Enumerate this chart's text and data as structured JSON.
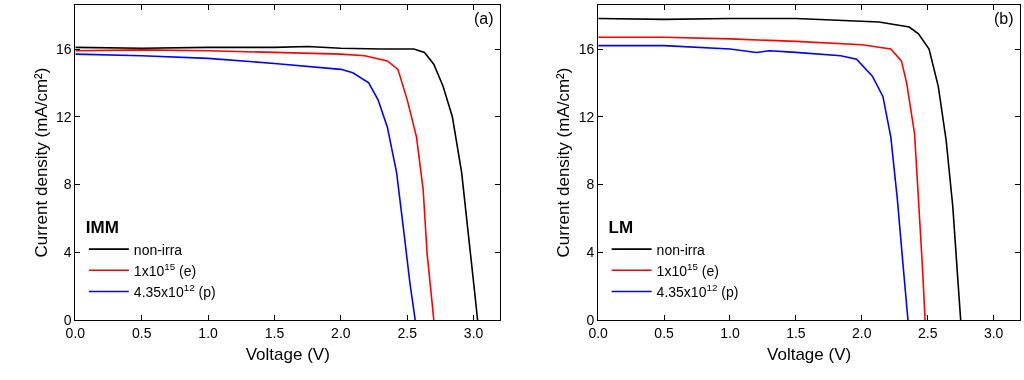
{
  "chart_data": [
    {
      "type": "line",
      "xlabel": "Voltage (V)",
      "ylabel": "Current density (mA/cm²)",
      "legend_title": "IMM",
      "annotations": [
        "(a)"
      ],
      "legend": "bottom left",
      "xlim": [
        0,
        3.2
      ],
      "ylim": [
        0,
        18.6
      ],
      "xticks": [
        {
          "value": 0,
          "label": "0.0"
        },
        {
          "value": 0.5,
          "label": "0.5"
        },
        {
          "value": 1,
          "label": "1.0"
        },
        {
          "value": 1.5,
          "label": "1.5"
        },
        {
          "value": 2,
          "label": "2.0"
        },
        {
          "value": 2.5,
          "label": "2.5"
        },
        {
          "value": 3,
          "label": "3.0"
        }
      ],
      "yticks": [
        0,
        4,
        8,
        12,
        16
      ],
      "series": [
        {
          "name": "non-irra",
          "color": "#000000",
          "x": [
            0,
            0.5,
            1.0,
            1.5,
            1.75,
            2.0,
            2.3,
            2.55,
            2.63,
            2.7,
            2.77,
            2.84,
            2.91,
            2.96,
            3.01,
            3.03
          ],
          "values": [
            16.1,
            16.05,
            16.1,
            16.1,
            16.15,
            16.05,
            16.0,
            16.0,
            15.8,
            15.1,
            13.8,
            12.0,
            8.7,
            5.1,
            1.5,
            0
          ]
        },
        {
          "name": "1x10$^{15}$ (e)",
          "color": "#ff0000",
          "x": [
            0,
            0.5,
            1.0,
            1.5,
            2.0,
            2.18,
            2.35,
            2.43,
            2.5,
            2.57,
            2.62,
            2.65,
            2.69,
            2.7
          ],
          "values": [
            15.9,
            15.95,
            15.9,
            15.8,
            15.7,
            15.6,
            15.3,
            14.8,
            13.0,
            10.8,
            7.7,
            3.9,
            0.8,
            0
          ]
        },
        {
          "name": "4.35x10$^{12}$ (p)",
          "color": "#0000ff",
          "x": [
            0,
            0.5,
            1.0,
            1.5,
            2.0,
            2.09,
            2.21,
            2.28,
            2.35,
            2.42,
            2.47,
            2.52,
            2.56
          ],
          "values": [
            15.7,
            15.6,
            15.45,
            15.15,
            14.8,
            14.6,
            14.0,
            13.0,
            11.4,
            8.7,
            5.5,
            2.2,
            0
          ]
        }
      ]
    },
    {
      "type": "line",
      "xlabel": "Voltage (V)",
      "ylabel": "Current density (mA/cm²)",
      "legend_title": "LM",
      "annotations": [
        "(b)"
      ],
      "legend": "bottom left",
      "xlim": [
        0,
        3.2
      ],
      "ylim": [
        0,
        18.6
      ],
      "xticks": [
        {
          "value": 0,
          "label": "0.0"
        },
        {
          "value": 0.5,
          "label": "0.5"
        },
        {
          "value": 1,
          "label": "1.0"
        },
        {
          "value": 1.5,
          "label": "1.5"
        },
        {
          "value": 2,
          "label": "2.0"
        },
        {
          "value": 2.5,
          "label": "2.5"
        },
        {
          "value": 3,
          "label": "3.0"
        }
      ],
      "yticks": [
        0,
        4,
        8,
        12,
        16
      ],
      "series": [
        {
          "name": "non-irra",
          "color": "#000000",
          "x": [
            0,
            0.5,
            1.0,
            1.5,
            2.13,
            2.36,
            2.43,
            2.51,
            2.58,
            2.64,
            2.69,
            2.73,
            2.75
          ],
          "values": [
            17.8,
            17.75,
            17.8,
            17.8,
            17.6,
            17.3,
            16.9,
            16.0,
            13.8,
            10.6,
            6.7,
            2.2,
            0
          ]
        },
        {
          "name": "1x10$^{15}$ (e)",
          "color": "#ff0000",
          "x": [
            0,
            0.5,
            1.0,
            1.5,
            2.0,
            2.22,
            2.3,
            2.34,
            2.4,
            2.43,
            2.46,
            2.48
          ],
          "values": [
            16.7,
            16.7,
            16.6,
            16.45,
            16.25,
            16.0,
            15.3,
            14.0,
            11.0,
            7.1,
            3.1,
            0
          ]
        },
        {
          "name": "4.35x10$^{12}$ (p)",
          "color": "#0000ff",
          "x": [
            0,
            0.5,
            1.0,
            1.2,
            1.3,
            1.5,
            1.84,
            1.96,
            2.08,
            2.16,
            2.22,
            2.27,
            2.31,
            2.35
          ],
          "values": [
            16.2,
            16.2,
            16.0,
            15.8,
            15.9,
            15.8,
            15.6,
            15.4,
            14.4,
            13.2,
            10.8,
            7.1,
            3.5,
            0
          ]
        }
      ]
    }
  ]
}
